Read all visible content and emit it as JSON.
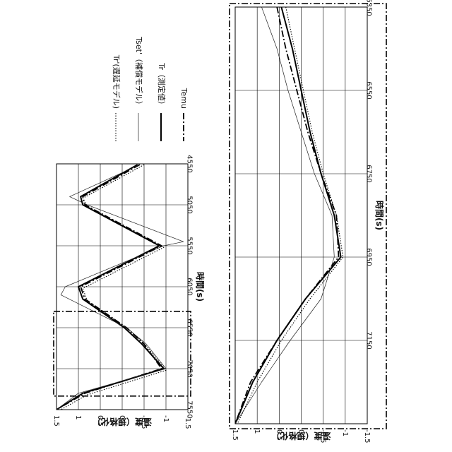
{
  "chart_data": [
    {
      "type": "line",
      "panel": "top",
      "xlabel": "時間(s)",
      "ylabel": "温度（規格化）",
      "xlim": [
        4550,
        7550
      ],
      "ylim": [
        -1.5,
        1.5
      ],
      "x_ticks": [
        "4550",
        "5050",
        "5550",
        "6050",
        "6550",
        "7050",
        "7550"
      ],
      "y_ticks": [
        "1.5",
        "1",
        "0.5",
        "0",
        "-0.5",
        "-1",
        "-1.5"
      ],
      "grid": true,
      "zoom_region": [
        6350,
        7350
      ],
      "series": [
        {
          "name": "Temu",
          "style": "dash-dot",
          "x": [
            4560,
            4950,
            5050,
            5550,
            6050,
            6200,
            6550,
            6750,
            7050,
            7350,
            7550
          ],
          "y": [
            -0.4,
            0.9,
            0.85,
            -0.9,
            0.95,
            0.85,
            -0.1,
            -0.5,
            -0.9,
            0.85,
            1.5
          ]
        },
        {
          "name": "Tr（測定値）",
          "style": "bold",
          "x": [
            4560,
            4950,
            5050,
            5550,
            6050,
            6200,
            6550,
            6750,
            7050,
            7350,
            7550
          ],
          "y": [
            -0.35,
            0.95,
            0.9,
            -0.85,
            1.0,
            0.9,
            -0.05,
            -0.45,
            -0.95,
            0.9,
            1.5
          ]
        },
        {
          "name": "Tset'（補償モデル）",
          "style": "thin",
          "x": [
            4560,
            4950,
            5050,
            5500,
            5550,
            6050,
            6150,
            6550,
            6750,
            7050,
            7350,
            7550
          ],
          "y": [
            -0.4,
            1.2,
            0.8,
            -1.4,
            -0.95,
            1.3,
            1.4,
            -0.1,
            -0.55,
            -1.0,
            1.0,
            1.5
          ]
        },
        {
          "name": "Tr'(遅延モデル)",
          "style": "dotted",
          "x": [
            4560,
            4970,
            5070,
            5570,
            6070,
            6220,
            6570,
            6770,
            7070,
            7370,
            7550
          ],
          "y": [
            -0.5,
            0.9,
            0.8,
            -0.95,
            0.9,
            0.8,
            -0.15,
            -0.55,
            -1.0,
            0.8,
            1.4
          ]
        }
      ]
    },
    {
      "type": "line",
      "panel": "bottom",
      "xlabel": "時間(s)",
      "ylabel": "温度（規格化）",
      "xlim": [
        6350,
        7350
      ],
      "ylim": [
        -1.5,
        1.5
      ],
      "x_ticks": [
        "6350",
        "6550",
        "6750",
        "6950",
        "7150"
      ],
      "y_ticks": [
        "1.5",
        "1",
        "0.5",
        "0",
        "-0.5",
        "-1",
        "-1.5"
      ],
      "grid": true,
      "series": [
        {
          "name": "Temu",
          "style": "dash-dot",
          "x": [
            6350,
            6450,
            6550,
            6650,
            6750,
            6850,
            6950,
            7050,
            7150,
            7250,
            7350
          ],
          "y": [
            0.55,
            0.35,
            0.1,
            -0.15,
            -0.45,
            -0.8,
            -0.85,
            -0.1,
            0.55,
            1.15,
            1.5
          ]
        },
        {
          "name": "Tr（測定値）",
          "style": "bold",
          "x": [
            6350,
            6450,
            6550,
            6650,
            6750,
            6850,
            6950,
            7050,
            7150,
            7250,
            7350
          ],
          "y": [
            0.45,
            0.2,
            0.0,
            -0.2,
            -0.45,
            -0.75,
            -0.9,
            -0.1,
            0.55,
            1.1,
            1.5
          ]
        },
        {
          "name": "Tset'（補償モデル）",
          "style": "thin",
          "x": [
            6350,
            6450,
            6550,
            6650,
            6750,
            6850,
            6950,
            7050,
            7150,
            7250,
            7350
          ],
          "y": [
            0.9,
            0.55,
            0.3,
            0.0,
            -0.3,
            -0.7,
            -0.75,
            -0.45,
            0.25,
            0.9,
            1.5
          ]
        },
        {
          "name": "Tr'(遅延モデル)",
          "style": "dotted",
          "x": [
            6350,
            6450,
            6550,
            6650,
            6750,
            6850,
            6950,
            7050,
            7150,
            7250,
            7350
          ],
          "y": [
            0.35,
            0.15,
            -0.05,
            -0.25,
            -0.5,
            -0.8,
            -0.95,
            -0.2,
            0.45,
            1.0,
            1.45
          ]
        }
      ]
    }
  ],
  "legend": [
    {
      "label": "Temu",
      "style": "dash-dot"
    },
    {
      "label": "Tr（測定値）",
      "style": "bold"
    },
    {
      "label": "Tset'（補償モデル）",
      "style": "thin"
    },
    {
      "label": "Tr'(遅延モデル)",
      "style": "dotted"
    }
  ]
}
